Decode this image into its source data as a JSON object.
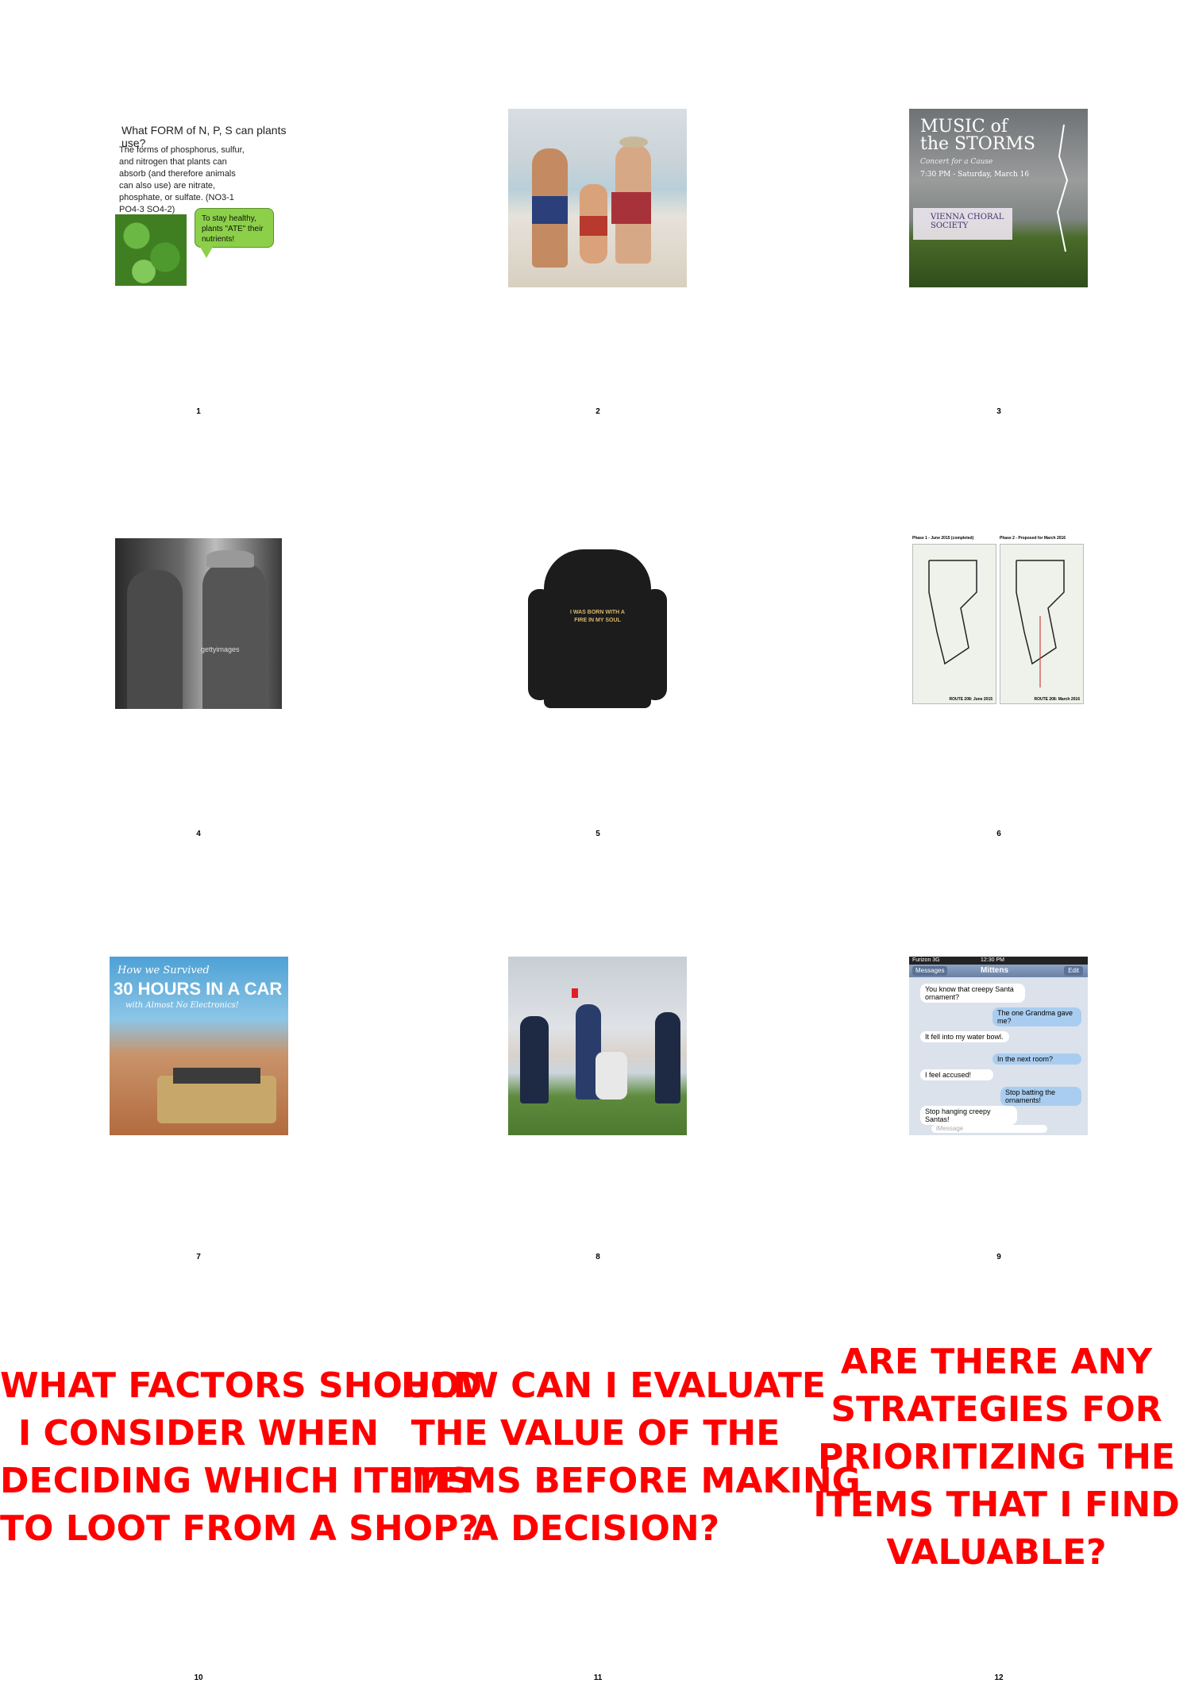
{
  "slides": [
    {
      "number": "1",
      "title": "What FORM of N, P, S can plants use?",
      "body": "The forms of phosphorus, sulfur, and nitrogen that plants can absorb (and therefore animals can also use) are nitrate, phosphate, or sulfate. (NO3-1 PO4-3 SO4-2)",
      "bubble": "To stay healthy, plants \"ATE\" their nutrients!"
    },
    {
      "number": "2"
    },
    {
      "number": "3",
      "title": "MUSIC of the STORMS",
      "subtitle": "Concert for a Cause",
      "date": "7:30 PM - Saturday, March 16",
      "org": "VIENNA CHORAL SOCIETY"
    },
    {
      "number": "4",
      "watermark": "gettyimages"
    },
    {
      "number": "5",
      "shirt_text": "I WAS BORN WITH A FIRE IN MY SOUL"
    },
    {
      "number": "6",
      "left_title": "Phase 1 - June 2015 (completed)",
      "right_title": "Phase 2 - Proposed for March 2016",
      "left_footer": "ROUTE 208: June 2015",
      "right_footer": "ROUTE 208: March 2016"
    },
    {
      "number": "7",
      "line1": "How we Survived",
      "line2": "30 HOURS IN A CAR",
      "line3": "with Almost No Electronics!"
    },
    {
      "number": "8"
    },
    {
      "number": "9",
      "carrier": "Furizon 3G",
      "time": "12:30 PM",
      "back": "Messages",
      "contact": "Mittens",
      "edit": "Edit",
      "messages": [
        {
          "side": "left",
          "text": "You know that creepy Santa ornament?"
        },
        {
          "side": "right",
          "text": "The one Grandma gave me?"
        },
        {
          "side": "left",
          "text": "It fell into my water bowl."
        },
        {
          "side": "right",
          "text": "In the next room?"
        },
        {
          "side": "left",
          "text": "I feel accused!"
        },
        {
          "side": "right",
          "text": "Stop batting the ornaments!"
        },
        {
          "side": "left",
          "text": "Stop hanging creepy Santas!"
        }
      ],
      "input_placeholder": "iMessage"
    },
    {
      "number": "10",
      "lines": [
        "WHAT FACTORS SHOULD",
        "I CONSIDER WHEN",
        "DECIDING WHICH ITEMS",
        "TO LOOT FROM A SHOP?"
      ]
    },
    {
      "number": "11",
      "lines": [
        "HOW CAN I EVALUATE",
        "THE VALUE OF THE",
        "ITEMS BEFORE MAKING",
        "A DECISION?"
      ]
    },
    {
      "number": "12",
      "lines": [
        "ARE THERE ANY",
        "STRATEGIES FOR",
        "PRIORITIZING THE",
        "ITEMS THAT I FIND",
        "VALUABLE?"
      ]
    }
  ],
  "colors": {
    "accent_red": "#ff0000"
  }
}
